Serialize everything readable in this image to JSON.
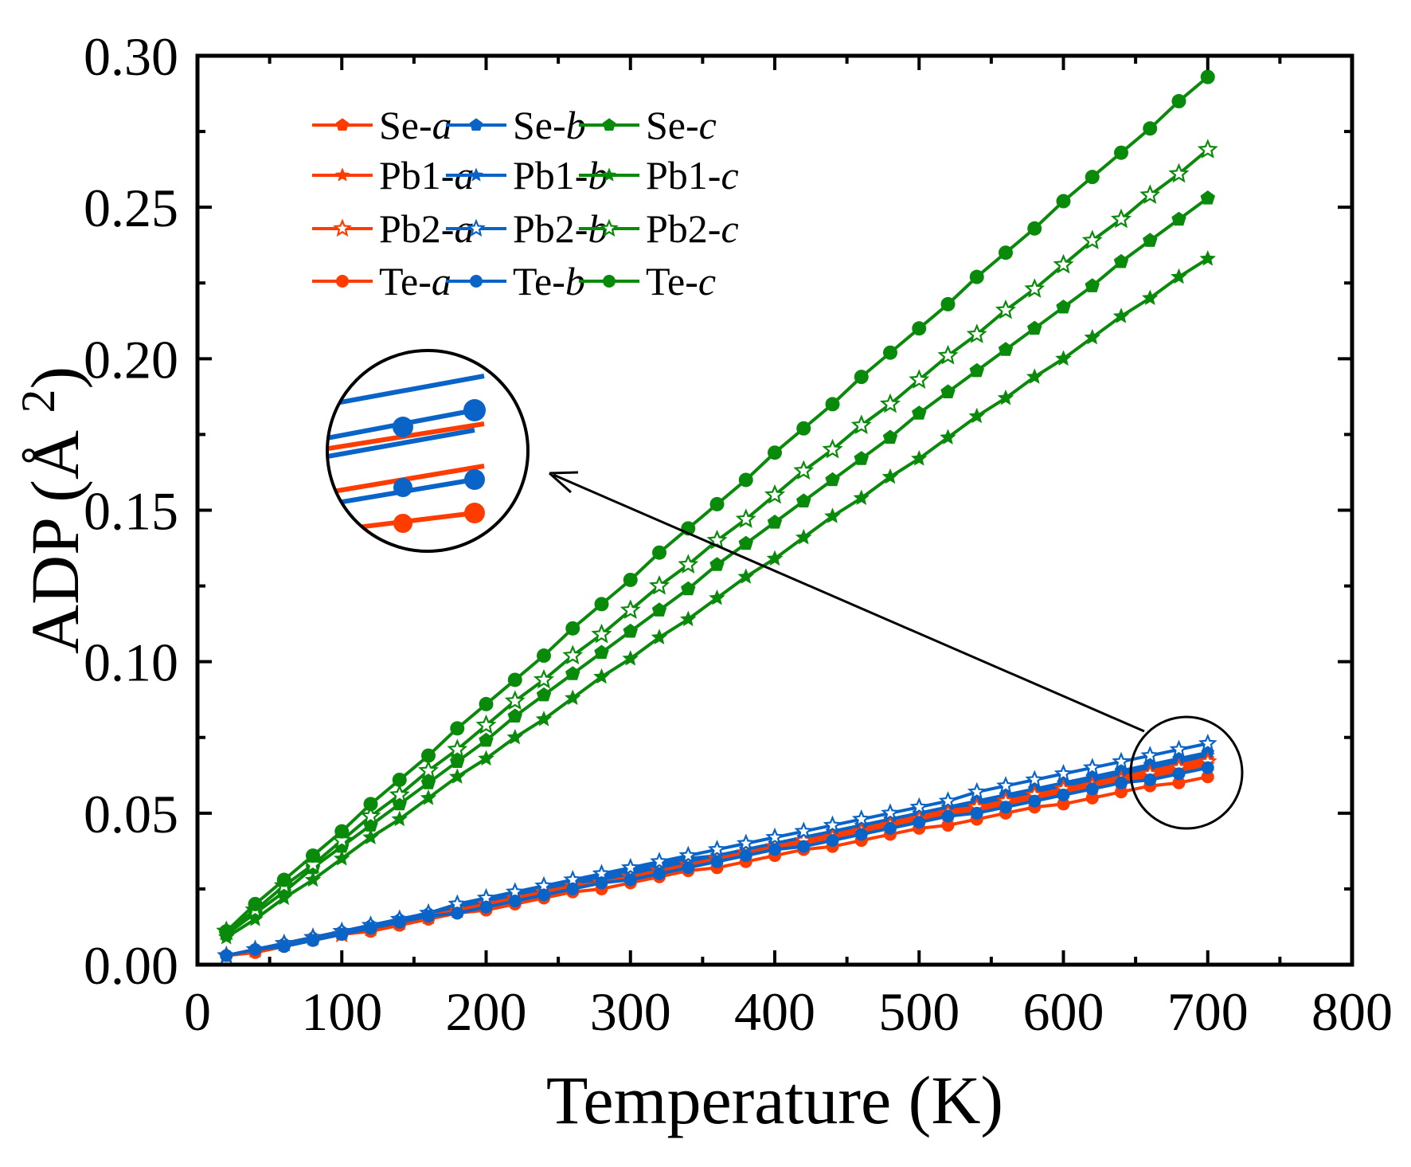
{
  "chart_data": {
    "type": "line",
    "xlabel": "Temperature (K)",
    "ylabel": "ADP (Å",
    "ylabel_sup": "2",
    "ylabel_close": ")",
    "xlim": [
      0,
      800
    ],
    "ylim": [
      0,
      0.3
    ],
    "xticks": [
      "0",
      "100",
      "200",
      "300",
      "400",
      "500",
      "600",
      "700",
      "800"
    ],
    "yticks": [
      "0.00",
      "0.05",
      "0.10",
      "0.15",
      "0.20",
      "0.25",
      "0.30"
    ],
    "grid": false,
    "legend_placement": "top-left",
    "colors": {
      "a": "#ff3c00",
      "b": "#0a64c8",
      "c": "#0a8a0a"
    },
    "x": [
      20,
      40,
      60,
      80,
      100,
      120,
      140,
      160,
      180,
      200,
      220,
      240,
      260,
      280,
      300,
      320,
      340,
      360,
      380,
      400,
      420,
      440,
      460,
      480,
      500,
      520,
      540,
      560,
      580,
      600,
      620,
      640,
      660,
      680,
      700
    ],
    "series": [
      {
        "name": "Se-a",
        "axis": "a",
        "marker": "pentagon",
        "values": [
          0.003,
          0.005,
          0.007,
          0.009,
          0.011,
          0.012,
          0.014,
          0.016,
          0.018,
          0.02,
          0.022,
          0.024,
          0.026,
          0.028,
          0.03,
          0.032,
          0.034,
          0.035,
          0.037,
          0.039,
          0.041,
          0.043,
          0.045,
          0.047,
          0.049,
          0.051,
          0.053,
          0.055,
          0.057,
          0.058,
          0.06,
          0.062,
          0.064,
          0.066,
          0.068
        ]
      },
      {
        "name": "Se-b",
        "axis": "b",
        "marker": "pentagon",
        "values": [
          0.003,
          0.005,
          0.007,
          0.009,
          0.011,
          0.013,
          0.015,
          0.017,
          0.019,
          0.021,
          0.023,
          0.025,
          0.027,
          0.029,
          0.031,
          0.033,
          0.035,
          0.036,
          0.038,
          0.04,
          0.042,
          0.044,
          0.046,
          0.048,
          0.05,
          0.052,
          0.054,
          0.056,
          0.058,
          0.06,
          0.062,
          0.064,
          0.066,
          0.068,
          0.07
        ]
      },
      {
        "name": "Se-c",
        "axis": "c",
        "marker": "pentagon",
        "values": [
          0.01,
          0.017,
          0.024,
          0.032,
          0.039,
          0.046,
          0.053,
          0.06,
          0.067,
          0.074,
          0.082,
          0.089,
          0.096,
          0.103,
          0.11,
          0.117,
          0.124,
          0.132,
          0.139,
          0.146,
          0.153,
          0.16,
          0.167,
          0.174,
          0.182,
          0.189,
          0.196,
          0.203,
          0.21,
          0.217,
          0.224,
          0.232,
          0.239,
          0.246,
          0.253
        ]
      },
      {
        "name": "Pb1-a",
        "axis": "a",
        "marker": "star",
        "values": [
          0.003,
          0.005,
          0.007,
          0.008,
          0.01,
          0.012,
          0.014,
          0.016,
          0.018,
          0.02,
          0.021,
          0.023,
          0.025,
          0.027,
          0.029,
          0.031,
          0.033,
          0.034,
          0.036,
          0.038,
          0.04,
          0.042,
          0.044,
          0.046,
          0.047,
          0.049,
          0.051,
          0.053,
          0.055,
          0.057,
          0.059,
          0.06,
          0.062,
          0.064,
          0.066
        ]
      },
      {
        "name": "Pb1-b",
        "axis": "b",
        "marker": "star",
        "values": [
          0.003,
          0.005,
          0.007,
          0.009,
          0.011,
          0.013,
          0.015,
          0.017,
          0.018,
          0.02,
          0.022,
          0.024,
          0.026,
          0.028,
          0.03,
          0.032,
          0.034,
          0.036,
          0.038,
          0.04,
          0.042,
          0.044,
          0.046,
          0.048,
          0.05,
          0.052,
          0.053,
          0.055,
          0.057,
          0.059,
          0.061,
          0.063,
          0.065,
          0.067,
          0.069
        ]
      },
      {
        "name": "Pb1-c",
        "axis": "c",
        "marker": "star",
        "values": [
          0.009,
          0.015,
          0.022,
          0.028,
          0.035,
          0.042,
          0.048,
          0.055,
          0.062,
          0.068,
          0.075,
          0.081,
          0.088,
          0.095,
          0.101,
          0.108,
          0.114,
          0.121,
          0.128,
          0.134,
          0.141,
          0.148,
          0.154,
          0.161,
          0.167,
          0.174,
          0.181,
          0.187,
          0.194,
          0.2,
          0.207,
          0.214,
          0.22,
          0.227,
          0.233
        ]
      },
      {
        "name": "Pb2-a",
        "axis": "a",
        "marker": "open-star",
        "values": [
          0.003,
          0.005,
          0.007,
          0.009,
          0.01,
          0.012,
          0.014,
          0.016,
          0.018,
          0.02,
          0.022,
          0.024,
          0.026,
          0.027,
          0.029,
          0.031,
          0.033,
          0.035,
          0.037,
          0.039,
          0.041,
          0.042,
          0.044,
          0.046,
          0.048,
          0.05,
          0.052,
          0.054,
          0.056,
          0.058,
          0.059,
          0.061,
          0.063,
          0.065,
          0.067
        ]
      },
      {
        "name": "Pb2-b",
        "axis": "b",
        "marker": "open-star",
        "values": [
          0.003,
          0.005,
          0.007,
          0.009,
          0.011,
          0.013,
          0.015,
          0.017,
          0.02,
          0.022,
          0.024,
          0.026,
          0.028,
          0.03,
          0.032,
          0.034,
          0.036,
          0.038,
          0.04,
          0.042,
          0.044,
          0.046,
          0.048,
          0.05,
          0.052,
          0.054,
          0.057,
          0.059,
          0.061,
          0.063,
          0.065,
          0.067,
          0.069,
          0.071,
          0.073
        ]
      },
      {
        "name": "Pb2-c",
        "axis": "c",
        "marker": "open-star",
        "values": [
          0.011,
          0.018,
          0.026,
          0.033,
          0.041,
          0.049,
          0.056,
          0.064,
          0.071,
          0.079,
          0.087,
          0.094,
          0.102,
          0.109,
          0.117,
          0.125,
          0.132,
          0.14,
          0.147,
          0.155,
          0.163,
          0.17,
          0.178,
          0.185,
          0.193,
          0.201,
          0.208,
          0.216,
          0.223,
          0.231,
          0.239,
          0.246,
          0.254,
          0.261,
          0.269
        ]
      },
      {
        "name": "Te-a",
        "axis": "a",
        "marker": "circle",
        "values": [
          0.003,
          0.004,
          0.006,
          0.008,
          0.01,
          0.011,
          0.013,
          0.015,
          0.017,
          0.018,
          0.02,
          0.022,
          0.024,
          0.025,
          0.027,
          0.029,
          0.031,
          0.032,
          0.034,
          0.036,
          0.038,
          0.039,
          0.041,
          0.043,
          0.045,
          0.046,
          0.048,
          0.05,
          0.052,
          0.053,
          0.055,
          0.057,
          0.059,
          0.06,
          0.062
        ]
      },
      {
        "name": "Te-b",
        "axis": "b",
        "marker": "circle",
        "values": [
          0.003,
          0.005,
          0.006,
          0.008,
          0.01,
          0.012,
          0.014,
          0.016,
          0.017,
          0.019,
          0.021,
          0.023,
          0.025,
          0.027,
          0.028,
          0.03,
          0.032,
          0.034,
          0.036,
          0.038,
          0.039,
          0.041,
          0.043,
          0.045,
          0.047,
          0.049,
          0.05,
          0.052,
          0.054,
          0.056,
          0.058,
          0.06,
          0.061,
          0.063,
          0.065
        ]
      },
      {
        "name": "Te-c",
        "axis": "c",
        "marker": "circle",
        "values": [
          0.011,
          0.02,
          0.028,
          0.036,
          0.044,
          0.053,
          0.061,
          0.069,
          0.078,
          0.086,
          0.094,
          0.102,
          0.111,
          0.119,
          0.127,
          0.136,
          0.144,
          0.152,
          0.16,
          0.169,
          0.177,
          0.185,
          0.194,
          0.202,
          0.21,
          0.218,
          0.227,
          0.235,
          0.243,
          0.252,
          0.26,
          0.268,
          0.276,
          0.285,
          0.293
        ]
      }
    ],
    "legend_order": [
      [
        "Se-a",
        "Se-b",
        "Se-c"
      ],
      [
        "Pb1-a",
        "Pb1-b",
        "Pb1-c"
      ],
      [
        "Pb2-a",
        "Pb2-b",
        "Pb2-c"
      ],
      [
        "Te-a",
        "Te-b",
        "Te-c"
      ]
    ],
    "annotation": "magnified inset of the 700 K region of the a/b series, connected by an arrow"
  }
}
